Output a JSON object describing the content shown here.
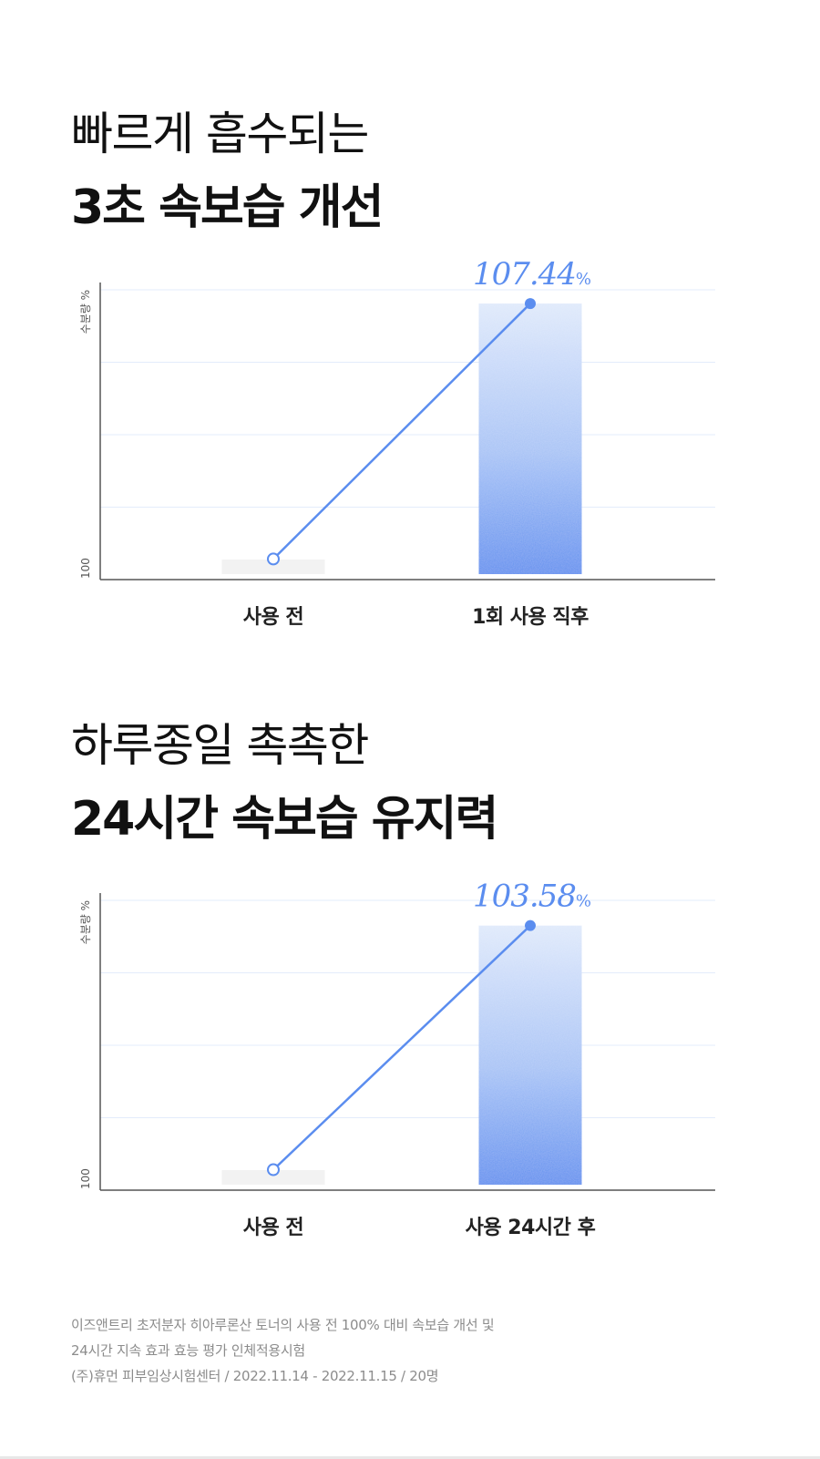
{
  "section1": {
    "title_line1": "빠르게 흡수되는",
    "title_line2": "3초 속보습 개선"
  },
  "section2": {
    "title_line1": "하루종일 촉촉한",
    "title_line2": "24시간 속보습 유지력"
  },
  "footnote": {
    "line1": "이즈앤트리 초저분자 히아루론산 토너의 사용 전 100% 대비 속보습 개선 및",
    "line2": "24시간 지속 효과 효능 평가 인체적용시험",
    "line3": "(주)휴먼 피부임상시험센터 / 2022.11.14 - 2022.11.15 / 20명"
  },
  "colors": {
    "accent": "#5b8def",
    "before_bar": "#f2f2f2",
    "grid": "#e3ecfb",
    "axis": "#555555"
  },
  "chart_data": [
    {
      "type": "bar",
      "categories": [
        "사용 전",
        "1회 사용 직후"
      ],
      "values": [
        100,
        107.44
      ],
      "value_label": "107.44",
      "value_unit": "%",
      "ylabel": "수분량 %",
      "y_tick_labels": [
        "100"
      ],
      "ylim": [
        99.4,
        107.84
      ],
      "grid": true
    },
    {
      "type": "bar",
      "categories": [
        "사용 전",
        "사용 24시간 후"
      ],
      "values": [
        100,
        103.58
      ],
      "value_label": "103.58",
      "value_unit": "%",
      "ylabel": "수분량 %",
      "y_tick_labels": [
        "100"
      ],
      "ylim": [
        99.7,
        103.95
      ],
      "grid": true
    }
  ]
}
